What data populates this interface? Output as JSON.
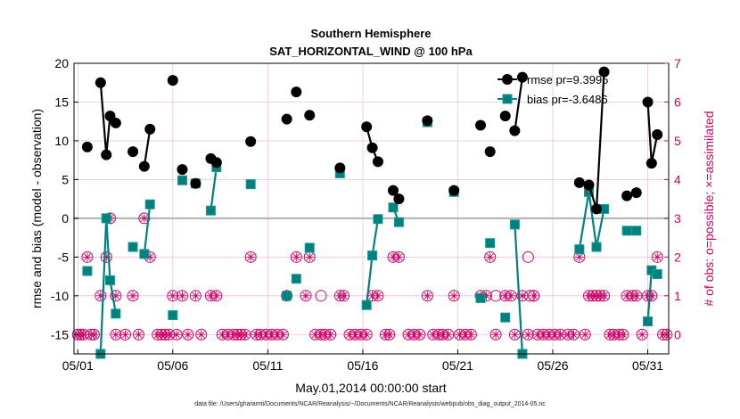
{
  "chart_data": {
    "type": "line",
    "title": "Southern Hemisphere",
    "subtitle": "SAT_HORIZONTAL_WIND @ 100 hPa",
    "xlabel": "May.01,2014 00:00:00 start",
    "ylabel": "rmse and bias (model - observation)",
    "y2label": "# of obs: o=possible; ×=assimilated",
    "xticks": [
      "05/01",
      "05/06",
      "05/11",
      "05/16",
      "05/21",
      "05/26",
      "05/31"
    ],
    "xtick_days": [
      1,
      6,
      11,
      16,
      21,
      26,
      31
    ],
    "xlim": [
      0.8,
      32.1
    ],
    "ylim": [
      -17.5,
      20
    ],
    "yticks": [
      -15,
      -10,
      -5,
      0,
      5,
      10,
      15,
      20
    ],
    "y2lim": [
      -0.5,
      7
    ],
    "y2ticks": [
      0,
      1,
      2,
      3,
      4,
      5,
      6,
      7
    ],
    "grid": true,
    "legend_position": "top-right",
    "colors": {
      "rmse": "#000000",
      "bias": "#008080",
      "obs": "#cc0066",
      "zero_line": "#b0b0b0",
      "grid": "#f0c0d8"
    },
    "series": [
      {
        "name": "rmse pr=9.3995",
        "segments": [
          [
            [
              1.5,
              9.2
            ]
          ],
          [
            [
              2.2,
              17.5
            ],
            [
              2.5,
              8.2
            ],
            [
              2.7,
              13.2
            ],
            [
              3.0,
              12.3
            ]
          ],
          [
            [
              3.9,
              8.6
            ]
          ],
          [
            [
              4.5,
              6.7
            ],
            [
              4.8,
              11.5
            ]
          ],
          [
            [
              6.0,
              17.8
            ]
          ],
          [
            [
              6.5,
              6.3
            ]
          ],
          [
            [
              7.2,
              4.5
            ]
          ],
          [
            [
              8.0,
              7.7
            ],
            [
              8.3,
              7.2
            ]
          ],
          [
            [
              10.1,
              9.9
            ]
          ],
          [
            [
              12.0,
              12.8
            ]
          ],
          [
            [
              12.5,
              16.3
            ]
          ],
          [
            [
              13.2,
              13.3
            ]
          ],
          [
            [
              14.8,
              6.5
            ]
          ],
          [
            [
              16.2,
              11.8
            ],
            [
              16.5,
              9.1
            ],
            [
              16.8,
              7.3
            ]
          ],
          [
            [
              17.6,
              3.6
            ],
            [
              17.9,
              2.5
            ]
          ],
          [
            [
              19.4,
              12.6
            ]
          ],
          [
            [
              20.8,
              3.6
            ]
          ],
          [
            [
              22.2,
              12.0
            ]
          ],
          [
            [
              22.7,
              8.6
            ]
          ],
          [
            [
              23.5,
              13.2
            ]
          ],
          [
            [
              24.0,
              11.3
            ],
            [
              24.4,
              18.2
            ]
          ],
          [
            [
              27.4,
              4.6
            ],
            [
              27.9,
              4.3
            ],
            [
              28.3,
              1.2
            ],
            [
              28.7,
              18.9
            ]
          ],
          [
            [
              29.9,
              2.9
            ]
          ],
          [
            [
              30.4,
              3.3
            ]
          ],
          [
            [
              31.0,
              15.0
            ],
            [
              31.2,
              7.1
            ],
            [
              31.5,
              10.8
            ]
          ]
        ]
      },
      {
        "name": "bias pr=-3.6486",
        "segments": [
          [
            [
              1.5,
              -6.8
            ]
          ],
          [
            [
              2.2,
              -17.5
            ],
            [
              2.5,
              0.0
            ],
            [
              2.7,
              -8.0
            ],
            [
              3.0,
              -12.3
            ]
          ],
          [
            [
              3.9,
              -3.7
            ]
          ],
          [
            [
              4.5,
              -4.6
            ],
            [
              4.8,
              1.8
            ]
          ],
          [
            [
              6.0,
              -12.5
            ]
          ],
          [
            [
              6.5,
              4.9
            ]
          ],
          [
            [
              7.2,
              4.5
            ]
          ],
          [
            [
              8.0,
              1.0
            ],
            [
              8.3,
              6.6
            ]
          ],
          [
            [
              10.1,
              4.4
            ]
          ],
          [
            [
              12.0,
              -10.0
            ]
          ],
          [
            [
              12.5,
              -7.8
            ]
          ],
          [
            [
              13.2,
              -3.8
            ]
          ],
          [
            [
              14.8,
              5.8
            ]
          ],
          [
            [
              16.2,
              -11.2
            ],
            [
              16.5,
              -4.8
            ],
            [
              16.8,
              -0.1
            ]
          ],
          [
            [
              17.6,
              1.4
            ],
            [
              17.9,
              -0.5
            ]
          ],
          [
            [
              19.4,
              12.4
            ]
          ],
          [
            [
              20.8,
              3.4
            ]
          ],
          [
            [
              22.2,
              -10.3
            ]
          ],
          [
            [
              22.7,
              -3.2
            ]
          ],
          [
            [
              23.5,
              -12.8
            ]
          ],
          [
            [
              24.0,
              -0.8
            ],
            [
              24.4,
              -17.5
            ]
          ],
          [
            [
              27.4,
              -4.0
            ],
            [
              27.9,
              3.4
            ],
            [
              28.3,
              -3.7
            ],
            [
              28.7,
              1.2
            ]
          ],
          [
            [
              29.9,
              -1.6
            ]
          ],
          [
            [
              30.4,
              -1.6
            ]
          ],
          [
            [
              31.0,
              -13.3
            ],
            [
              31.2,
              -6.7
            ],
            [
              31.5,
              -7.2
            ]
          ]
        ]
      }
    ],
    "obs_counts": [
      [
        1.0,
        0
      ],
      [
        1.15,
        0
      ],
      [
        1.3,
        0
      ],
      [
        1.5,
        2
      ],
      [
        1.7,
        0
      ],
      [
        1.85,
        0
      ],
      [
        2.2,
        1
      ],
      [
        2.5,
        2
      ],
      [
        2.7,
        3
      ],
      [
        3.0,
        1
      ],
      [
        3.0,
        0
      ],
      [
        3.5,
        0
      ],
      [
        3.9,
        1
      ],
      [
        4.2,
        0
      ],
      [
        4.5,
        3
      ],
      [
        4.8,
        2
      ],
      [
        5.2,
        0
      ],
      [
        5.4,
        0
      ],
      [
        5.6,
        0
      ],
      [
        5.8,
        0
      ],
      [
        6.0,
        1
      ],
      [
        6.2,
        0
      ],
      [
        6.5,
        1
      ],
      [
        6.8,
        0
      ],
      [
        7.2,
        1
      ],
      [
        7.5,
        0
      ],
      [
        8.0,
        1
      ],
      [
        8.3,
        1
      ],
      [
        8.6,
        0
      ],
      [
        8.9,
        0
      ],
      [
        9.2,
        0
      ],
      [
        9.4,
        0
      ],
      [
        9.6,
        0
      ],
      [
        9.8,
        0
      ],
      [
        10.1,
        2
      ],
      [
        10.4,
        0
      ],
      [
        10.6,
        0
      ],
      [
        10.9,
        0
      ],
      [
        11.2,
        0
      ],
      [
        11.5,
        0
      ],
      [
        11.8,
        0
      ],
      [
        12.0,
        1
      ],
      [
        12.5,
        2
      ],
      [
        13.0,
        1
      ],
      [
        13.2,
        2
      ],
      [
        13.5,
        0
      ],
      [
        13.8,
        0
      ],
      [
        14.0,
        0
      ],
      [
        14.3,
        0
      ],
      [
        14.8,
        1
      ],
      [
        15.0,
        1
      ],
      [
        15.3,
        0
      ],
      [
        15.6,
        0
      ],
      [
        15.9,
        0
      ],
      [
        16.2,
        0
      ],
      [
        16.5,
        1
      ],
      [
        16.8,
        1
      ],
      [
        17.2,
        0
      ],
      [
        17.4,
        0
      ],
      [
        17.6,
        2
      ],
      [
        17.9,
        2
      ],
      [
        18.4,
        0
      ],
      [
        18.7,
        0
      ],
      [
        19.0,
        0
      ],
      [
        19.4,
        1
      ],
      [
        19.7,
        0
      ],
      [
        20.0,
        0
      ],
      [
        20.2,
        0
      ],
      [
        20.5,
        0
      ],
      [
        20.8,
        1
      ],
      [
        21.1,
        0
      ],
      [
        21.4,
        0
      ],
      [
        21.7,
        0
      ],
      [
        22.2,
        1
      ],
      [
        22.5,
        1
      ],
      [
        22.7,
        2
      ],
      [
        23.0,
        0
      ],
      [
        23.5,
        1
      ],
      [
        23.8,
        1
      ],
      [
        24.0,
        0
      ],
      [
        24.4,
        1
      ],
      [
        24.7,
        0
      ],
      [
        25.0,
        1
      ],
      [
        25.2,
        0
      ],
      [
        25.5,
        0
      ],
      [
        25.8,
        0
      ],
      [
        26.1,
        0
      ],
      [
        26.4,
        0
      ],
      [
        26.8,
        0
      ],
      [
        27.1,
        0
      ],
      [
        27.4,
        2
      ],
      [
        27.7,
        0
      ],
      [
        27.9,
        1
      ],
      [
        28.1,
        1
      ],
      [
        28.3,
        1
      ],
      [
        28.5,
        1
      ],
      [
        28.7,
        1
      ],
      [
        29.0,
        0
      ],
      [
        29.2,
        0
      ],
      [
        29.5,
        0
      ],
      [
        29.7,
        0
      ],
      [
        29.9,
        1
      ],
      [
        30.2,
        1
      ],
      [
        30.4,
        1
      ],
      [
        30.7,
        0
      ],
      [
        31.0,
        1
      ],
      [
        31.2,
        1
      ],
      [
        31.5,
        2
      ],
      [
        31.8,
        0
      ],
      [
        32.0,
        0
      ]
    ],
    "obs_possible_only": [
      [
        13.8,
        1
      ],
      [
        24.8,
        1
      ],
      [
        23.0,
        1
      ],
      [
        25.0,
        1
      ],
      [
        24.7,
        2
      ]
    ]
  },
  "legend": {
    "rmse_label": "rmse pr=9.3995",
    "bias_label": "bias pr=-3.6486"
  },
  "footer": {
    "text": "data file: /Users/gharamti/Documents/NCAR/Reanalysis/~/Documents/NCAR/Reanalysis/webpub/obs_diag_output_2014-05.nc"
  }
}
